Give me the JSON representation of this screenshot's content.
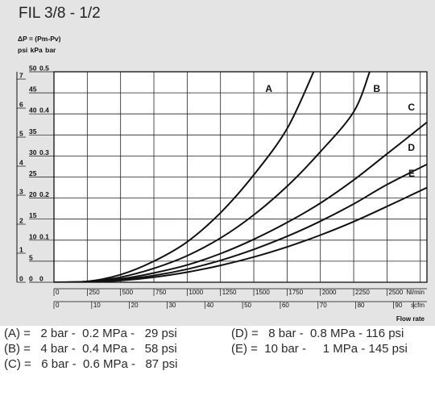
{
  "header": {
    "title": "FIL 3/8 - 1/2",
    "delta_p_label": "ΔP = (Pm-Pv)",
    "units_label": "psi kPa bar"
  },
  "chart_data": {
    "type": "line",
    "title": "FIL 3/8 - 1/2",
    "ylabel": "ΔP = (Pm-Pv)",
    "xlabel": "Flow rate",
    "x_unit_primary": "Nl/min",
    "x_unit_secondary": "scfm",
    "x_ticks_primary": [
      "0",
      "250",
      "500",
      "750",
      "1000",
      "1250",
      "1500",
      "1750",
      "2000",
      "2250",
      "2500"
    ],
    "x_ticks_secondary": [
      "0",
      "10",
      "20",
      "30",
      "40",
      "50",
      "60",
      "70",
      "80",
      "90"
    ],
    "y_ticks_psi": [
      "0",
      "1",
      "2",
      "3",
      "4",
      "5",
      "6",
      "7"
    ],
    "y_ticks_kpa": [
      "0",
      "5",
      "10",
      "15",
      "20",
      "25",
      "30",
      "35",
      "40",
      "45",
      "50"
    ],
    "y_ticks_bar": [
      "0",
      "0.1",
      "0.2",
      "0.3",
      "0.4",
      "0.5"
    ],
    "xlim": [
      0,
      2800
    ],
    "ylim_kpa": [
      0,
      50
    ],
    "grid": true,
    "series": [
      {
        "name": "A",
        "x": [
          0,
          250,
          500,
          750,
          1000,
          1250,
          1500,
          1750,
          1950
        ],
        "y": [
          0,
          0.2,
          1.8,
          5,
          9.6,
          16.5,
          25.5,
          36.5,
          50
        ]
      },
      {
        "name": "B",
        "x": [
          0,
          250,
          500,
          750,
          1000,
          1250,
          1500,
          1750,
          2000,
          2250,
          2370
        ],
        "y": [
          0,
          0.2,
          1.2,
          3.3,
          6.3,
          10.5,
          16,
          22.8,
          31,
          40.5,
          50
        ]
      },
      {
        "name": "C",
        "x": [
          0,
          250,
          500,
          750,
          1000,
          1250,
          1500,
          1750,
          2000,
          2250,
          2500,
          2800
        ],
        "y": [
          0,
          0.1,
          0.8,
          2.2,
          4.1,
          6.8,
          10.2,
          14.2,
          18.8,
          24.3,
          30.5,
          38
        ]
      },
      {
        "name": "D",
        "x": [
          0,
          250,
          500,
          750,
          1000,
          1250,
          1500,
          1750,
          2000,
          2250,
          2500,
          2800
        ],
        "y": [
          0,
          0.1,
          0.6,
          1.6,
          3.1,
          5.2,
          7.8,
          10.9,
          14.5,
          18.6,
          23.2,
          28
        ]
      },
      {
        "name": "E",
        "x": [
          0,
          250,
          500,
          750,
          1000,
          1250,
          1500,
          1750,
          2000,
          2250,
          2500,
          2800
        ],
        "y": [
          0,
          0.05,
          0.4,
          1.2,
          2.4,
          4,
          6,
          8.4,
          11.2,
          14.4,
          18,
          22.5
        ]
      }
    ]
  },
  "legend": {
    "rows": [
      [
        "(A) =   2 bar -  0.2 MPa -   29 psi",
        "(D) =   8 bar -  0.8 MPa - 116 psi"
      ],
      [
        "(B) =   4 bar -  0.4 MPa -   58 psi",
        "(E) =  10 bar -     1 MPa - 145 psi"
      ],
      [
        "(C) =   6 bar -  0.6 MPa -   87 psi",
        ""
      ]
    ]
  },
  "colors": {
    "background": "#e4e4e4",
    "legend_background": "#ffffff",
    "curve": "#111111",
    "grid": "#222222"
  }
}
